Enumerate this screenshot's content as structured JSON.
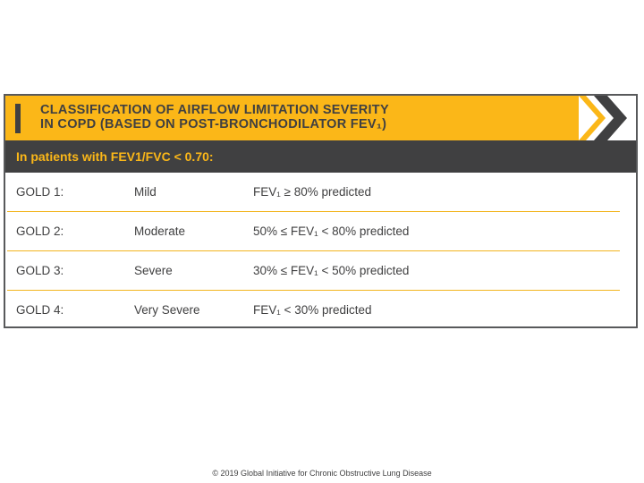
{
  "banner": {
    "title_line1": "CLASSIFICATION OF AIRFLOW LIMITATION SEVERITY",
    "title_line2": "IN COPD (BASED ON POST-BRONCHODILATOR FEV₁)",
    "chevron_icon": "double-chevron-right-icon"
  },
  "subheader": "In patients with FEV1/FVC < 0.70:",
  "rows": [
    {
      "grade": "GOLD 1:",
      "severity": "Mild",
      "criteria": "FEV₁ ≥ 80% predicted"
    },
    {
      "grade": "GOLD 2:",
      "severity": "Moderate",
      "criteria": "50% ≤ FEV₁ < 80% predicted"
    },
    {
      "grade": "GOLD 3:",
      "severity": "Severe",
      "criteria": "30% ≤ FEV₁ < 50% predicted"
    },
    {
      "grade": "GOLD 4:",
      "severity": "Very Severe",
      "criteria": "FEV₁ < 30% predicted"
    }
  ],
  "footer": "© 2019 Global Initiative for Chronic Obstructive Lung Disease",
  "colors": {
    "accent": "#fbb718",
    "dark": "#404041",
    "divider": "#f2b51f"
  }
}
